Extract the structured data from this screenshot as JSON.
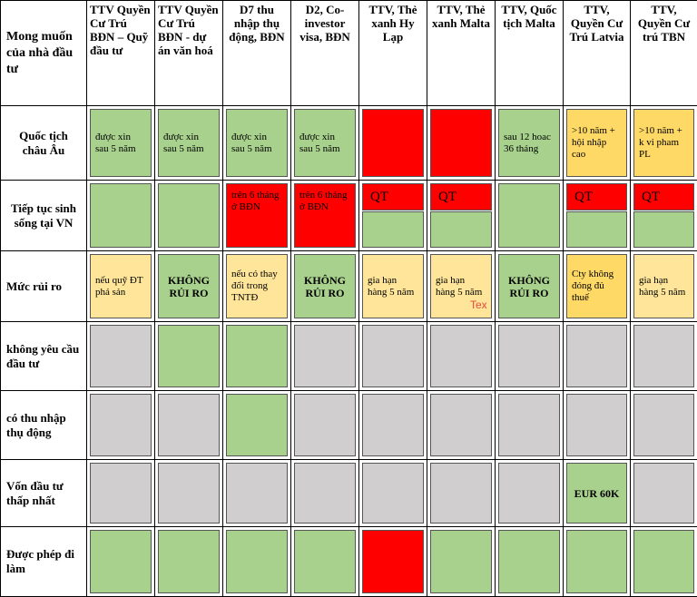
{
  "colors": {
    "green": "#a8d18d",
    "red": "#ff0000",
    "yellow": "#fee599",
    "gold": "#ffd966",
    "gray": "#d0cece"
  },
  "corner": "Mong muốn của nhà đầu tư",
  "columns": [
    "TTV Quyền Cư Trú BĐN – Quỹ đầu tư",
    "TTV Quyền Cư Trú BĐN - dự án văn hoá",
    "D7 thu nhập thụ động, BĐN",
    "D2, Co-investor visa, BĐN",
    "TTV, Thẻ xanh Hy Lạp",
    "TTV, Thẻ xanh Malta",
    "TTV, Quốc tịch Malta",
    "TTV, Quyền Cư Trú Latvia",
    "TTV, Quyền Cư trú TBN"
  ],
  "rows": [
    {
      "label": "Quốc tịch châu Âu",
      "cells": [
        {
          "color": "green",
          "text": "được xin sau 5 năm"
        },
        {
          "color": "green",
          "text": "được xin sau 5 năm"
        },
        {
          "color": "green",
          "text": "được xin sau 5 năm"
        },
        {
          "color": "green",
          "text": "được xin sau 5 năm"
        },
        {
          "color": "red",
          "text": ""
        },
        {
          "color": "red",
          "text": ""
        },
        {
          "color": "green",
          "text": "sau 12 hoac 36 tháng"
        },
        {
          "color": "gold",
          "text": ">10 năm + hội nhập cao"
        },
        {
          "color": "gold",
          "text": ">10 năm + k vi pham PL"
        }
      ]
    },
    {
      "label": "Tiếp tục sinh sống tại VN",
      "cells": [
        {
          "color": "green",
          "text": ""
        },
        {
          "color": "green",
          "text": ""
        },
        {
          "color": "red",
          "text": "trên 6 tháng ở BĐN"
        },
        {
          "color": "red",
          "text": "trên 6 tháng ở BĐN"
        },
        {
          "split": true,
          "qt": "QT"
        },
        {
          "split": true,
          "qt": "QT"
        },
        {
          "color": "green",
          "text": ""
        },
        {
          "split": true,
          "qt": "QT"
        },
        {
          "split": true,
          "qt": "QT"
        }
      ]
    },
    {
      "label": "Mức rủi ro",
      "cells": [
        {
          "color": "yellow",
          "text": "nếu quỹ ĐT phá sản"
        },
        {
          "color": "green",
          "text": "KHÔNG RỦI RO",
          "bold": true
        },
        {
          "color": "yellow",
          "text": "nếu có thay đổi trong TNTĐ"
        },
        {
          "color": "green",
          "text": "KHÔNG RỦI RO",
          "bold": true
        },
        {
          "color": "yellow",
          "text": "gia hạn hàng 5 năm"
        },
        {
          "color": "yellow",
          "text": "gia hạn hàng 5 năm"
        },
        {
          "color": "green",
          "text": "KHÔNG RỦI RO",
          "bold": true
        },
        {
          "color": "gold",
          "text": "Cty không đóng đủ thuế"
        },
        {
          "color": "yellow",
          "text": "gia hạn hàng 5 năm"
        }
      ]
    },
    {
      "label": "không yêu cầu đầu tư",
      "cells": [
        {
          "color": "gray",
          "text": ""
        },
        {
          "color": "green",
          "text": ""
        },
        {
          "color": "green",
          "text": ""
        },
        {
          "color": "gray",
          "text": ""
        },
        {
          "color": "gray",
          "text": ""
        },
        {
          "color": "gray",
          "text": ""
        },
        {
          "color": "gray",
          "text": ""
        },
        {
          "color": "gray",
          "text": ""
        },
        {
          "color": "gray",
          "text": ""
        }
      ]
    },
    {
      "label": "có thu nhập thụ động",
      "cells": [
        {
          "color": "gray",
          "text": ""
        },
        {
          "color": "gray",
          "text": ""
        },
        {
          "color": "green",
          "text": ""
        },
        {
          "color": "gray",
          "text": ""
        },
        {
          "color": "gray",
          "text": ""
        },
        {
          "color": "gray",
          "text": ""
        },
        {
          "color": "gray",
          "text": ""
        },
        {
          "color": "gray",
          "text": ""
        },
        {
          "color": "gray",
          "text": ""
        }
      ]
    },
    {
      "label": "Vốn đầu tư thấp nhất",
      "cells": [
        {
          "color": "gray",
          "text": ""
        },
        {
          "color": "gray",
          "text": ""
        },
        {
          "color": "gray",
          "text": ""
        },
        {
          "color": "gray",
          "text": ""
        },
        {
          "color": "gray",
          "text": ""
        },
        {
          "color": "gray",
          "text": ""
        },
        {
          "color": "gray",
          "text": ""
        },
        {
          "color": "green",
          "text": "EUR 60K",
          "bold": true
        },
        {
          "color": "gray",
          "text": ""
        }
      ]
    },
    {
      "label": "Được phép đi làm",
      "cells": [
        {
          "color": "green",
          "text": ""
        },
        {
          "color": "green",
          "text": ""
        },
        {
          "color": "green",
          "text": ""
        },
        {
          "color": "green",
          "text": ""
        },
        {
          "color": "red",
          "text": ""
        },
        {
          "color": "green",
          "text": ""
        },
        {
          "color": "green",
          "text": ""
        },
        {
          "color": "green",
          "text": ""
        },
        {
          "color": "green",
          "text": ""
        }
      ]
    }
  ],
  "stray_text": "Tex"
}
